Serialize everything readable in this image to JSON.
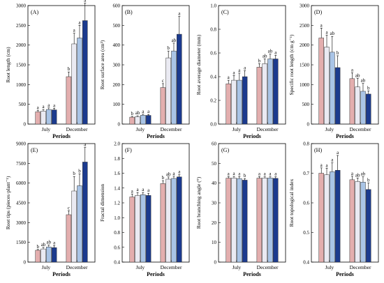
{
  "colors": {
    "series": [
      "#E3AEAE",
      "#EAEAF2",
      "#A9C4E6",
      "#1B3A8E"
    ],
    "bar_stroke": "#333333"
  },
  "chart_data": [
    {
      "type": "bar",
      "panel": "(A)",
      "ylabel": "Root length (cm)",
      "xlabel": "Periods",
      "categories": [
        "July",
        "December"
      ],
      "ylim": [
        0,
        3000
      ],
      "yticks": [
        0,
        500,
        1000,
        1500,
        2000,
        2500,
        3000
      ],
      "series": [
        {
          "values": [
            310,
            1200
          ],
          "errors": [
            35,
            120
          ],
          "letters": [
            "a",
            "b"
          ]
        },
        {
          "values": [
            330,
            2030
          ],
          "errors": [
            40,
            270
          ],
          "letters": [
            "a",
            "a"
          ]
        },
        {
          "values": [
            370,
            2180
          ],
          "errors": [
            40,
            320
          ],
          "letters": [
            "a",
            "a"
          ]
        },
        {
          "values": [
            360,
            2620
          ],
          "errors": [
            40,
            440
          ],
          "letters": [
            "a",
            "a"
          ]
        }
      ]
    },
    {
      "type": "bar",
      "panel": "(B)",
      "ylabel": "Root surface area (cm²)",
      "xlabel": "Periods",
      "categories": [
        "July",
        "December"
      ],
      "ylim": [
        0,
        600
      ],
      "yticks": [
        0,
        100,
        200,
        300,
        400,
        500,
        600
      ],
      "series": [
        {
          "values": [
            35,
            185
          ],
          "errors": [
            4,
            20
          ],
          "letters": [
            "b",
            "c"
          ]
        },
        {
          "values": [
            38,
            335
          ],
          "errors": [
            4,
            35
          ],
          "letters": [
            "ab",
            "b"
          ]
        },
        {
          "values": [
            45,
            370
          ],
          "errors": [
            5,
            40
          ],
          "letters": [
            "a",
            "ab"
          ]
        },
        {
          "values": [
            44,
            455
          ],
          "errors": [
            5,
            90
          ],
          "letters": [
            "a",
            "a"
          ]
        }
      ]
    },
    {
      "type": "bar",
      "panel": "(C)",
      "ylabel": "Root average diameter (mm)",
      "xlabel": "Periods",
      "categories": [
        "July",
        "December"
      ],
      "ylim": [
        0,
        1.0
      ],
      "yticks": [
        0.0,
        0.2,
        0.4,
        0.6,
        0.8,
        1.0
      ],
      "series": [
        {
          "values": [
            0.34,
            0.48
          ],
          "errors": [
            0.03,
            0.03
          ],
          "letters": [
            "a",
            "b"
          ]
        },
        {
          "values": [
            0.37,
            0.51
          ],
          "errors": [
            0.04,
            0.04
          ],
          "letters": [
            "a",
            "ab"
          ]
        },
        {
          "values": [
            0.37,
            0.55
          ],
          "errors": [
            0.06,
            0.04
          ],
          "letters": [
            "a",
            "ab"
          ]
        },
        {
          "values": [
            0.4,
            0.55
          ],
          "errors": [
            0.05,
            0.03
          ],
          "letters": [
            "a",
            "a"
          ]
        }
      ]
    },
    {
      "type": "bar",
      "panel": "(D)",
      "ylabel": "Specific root length (cm g⁻¹)",
      "xlabel": "Periods",
      "categories": [
        "July",
        "December"
      ],
      "ylim": [
        0,
        3000
      ],
      "yticks": [
        0,
        500,
        1000,
        1500,
        2000,
        2500,
        3000
      ],
      "series": [
        {
          "values": [
            2180,
            1150
          ],
          "errors": [
            250,
            150
          ],
          "letters": [
            "a",
            "a"
          ]
        },
        {
          "values": [
            1950,
            940
          ],
          "errors": [
            300,
            220
          ],
          "letters": [
            "a",
            "ab"
          ]
        },
        {
          "values": [
            1820,
            830
          ],
          "errors": [
            400,
            200
          ],
          "letters": [
            "ab",
            "ab"
          ]
        },
        {
          "values": [
            1430,
            760
          ],
          "errors": [
            300,
            80
          ],
          "letters": [
            "b",
            "b"
          ]
        }
      ]
    },
    {
      "type": "bar",
      "panel": "(E)",
      "ylabel": "Root tips (pieces·plant⁻¹)",
      "xlabel": "Periods",
      "categories": [
        "July",
        "December"
      ],
      "ylim": [
        0,
        9000
      ],
      "yticks": [
        0,
        1500,
        3000,
        4500,
        6000,
        7500,
        9000
      ],
      "series": [
        {
          "values": [
            900,
            3600
          ],
          "errors": [
            60,
            300
          ],
          "letters": [
            "b",
            "c"
          ]
        },
        {
          "values": [
            1000,
            5400
          ],
          "errors": [
            120,
            1100
          ],
          "letters": [
            "ab",
            "b"
          ]
        },
        {
          "values": [
            1150,
            5800
          ],
          "errors": [
            150,
            900
          ],
          "letters": [
            "ab",
            "b"
          ]
        },
        {
          "values": [
            1100,
            7600
          ],
          "errors": [
            150,
            1100
          ],
          "letters": [
            "a",
            "a"
          ]
        }
      ]
    },
    {
      "type": "bar",
      "panel": "(F)",
      "ylabel": "Fractal dimension",
      "xlabel": "Periods",
      "categories": [
        "July",
        "December"
      ],
      "ylim": [
        0.4,
        2.0
      ],
      "yticks": [
        0.4,
        0.6,
        0.8,
        1.0,
        1.2,
        1.4,
        1.6,
        1.8,
        2.0
      ],
      "series": [
        {
          "values": [
            1.28,
            1.46
          ],
          "errors": [
            0.04,
            0.04
          ],
          "letters": [
            "a",
            "b"
          ]
        },
        {
          "values": [
            1.3,
            1.52
          ],
          "errors": [
            0.04,
            0.03
          ],
          "letters": [
            "a",
            "ab"
          ]
        },
        {
          "values": [
            1.31,
            1.53
          ],
          "errors": [
            0.03,
            0.03
          ],
          "letters": [
            "a",
            "a"
          ]
        },
        {
          "values": [
            1.3,
            1.55
          ],
          "errors": [
            0.03,
            0.03
          ],
          "letters": [
            "a",
            "a"
          ]
        }
      ]
    },
    {
      "type": "bar",
      "panel": "(G)",
      "ylabel": "Root branching angle (°)",
      "xlabel": "Periods",
      "categories": [
        "July",
        "December"
      ],
      "ylim": [
        0,
        60
      ],
      "yticks": [
        0,
        10,
        20,
        30,
        40,
        50,
        60
      ],
      "series": [
        {
          "values": [
            42.5,
            42.5
          ],
          "errors": [
            0.8,
            0.8
          ],
          "letters": [
            "a",
            "a"
          ]
        },
        {
          "values": [
            42.6,
            42.6
          ],
          "errors": [
            0.8,
            0.6
          ],
          "letters": [
            "a",
            "a"
          ]
        },
        {
          "values": [
            42.3,
            42.6
          ],
          "errors": [
            1.0,
            0.6
          ],
          "letters": [
            "a",
            "a"
          ]
        },
        {
          "values": [
            41.5,
            42.4
          ],
          "errors": [
            0.8,
            0.8
          ],
          "letters": [
            "b",
            "a"
          ]
        }
      ]
    },
    {
      "type": "bar",
      "panel": "(H)",
      "ylabel": "Root topological index",
      "xlabel": "Periods",
      "categories": [
        "July",
        "December"
      ],
      "ylim": [
        0.4,
        0.8
      ],
      "yticks": [
        0.4,
        0.5,
        0.6,
        0.7,
        0.8
      ],
      "series": [
        {
          "values": [
            0.7,
            0.678
          ],
          "errors": [
            0.018,
            0.012
          ],
          "letters": [
            "a",
            "a"
          ]
        },
        {
          "values": [
            0.695,
            0.672
          ],
          "errors": [
            0.022,
            0.012
          ],
          "letters": [
            "a",
            "ab"
          ]
        },
        {
          "values": [
            0.705,
            0.67
          ],
          "errors": [
            0.03,
            0.018
          ],
          "letters": [
            "a",
            "ab"
          ]
        },
        {
          "values": [
            0.71,
            0.645
          ],
          "errors": [
            0.05,
            0.022
          ],
          "letters": [
            "a",
            "b"
          ]
        }
      ]
    }
  ]
}
